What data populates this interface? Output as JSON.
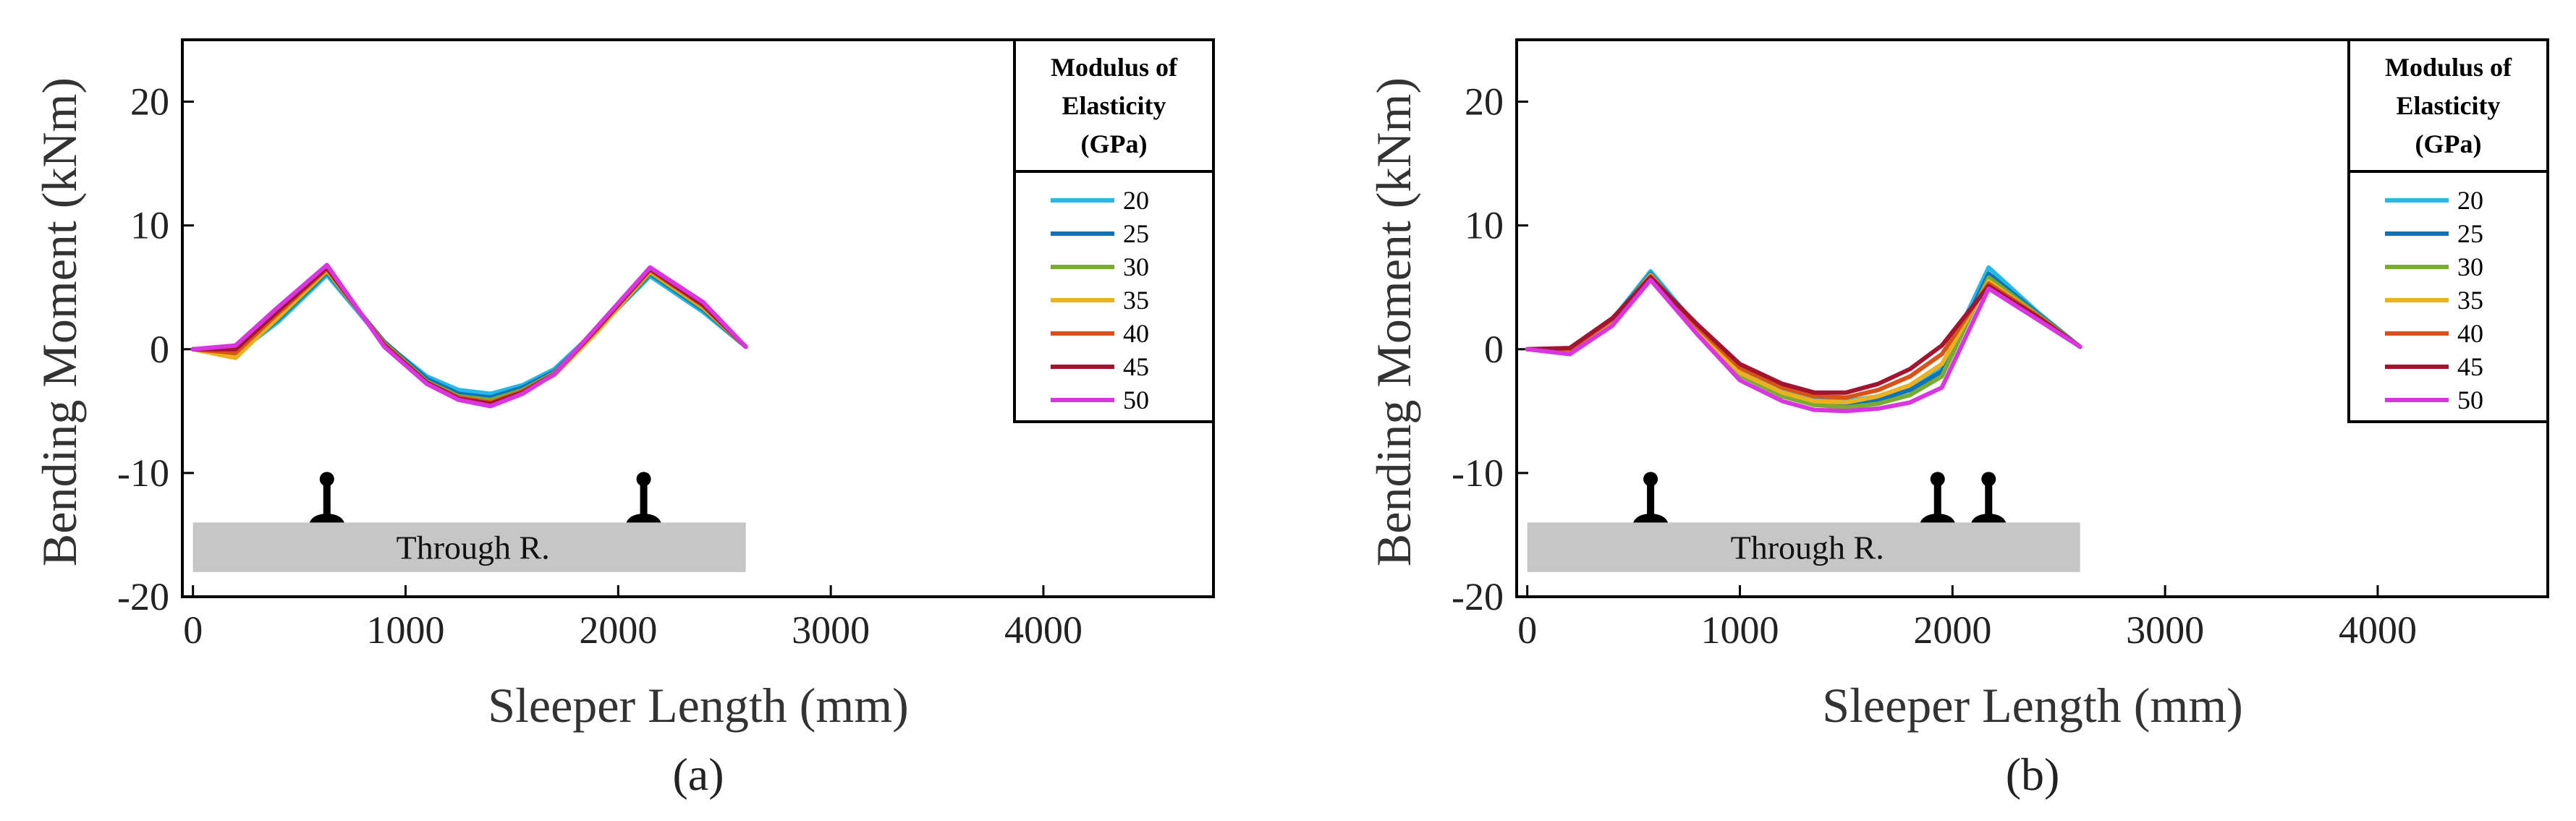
{
  "chart_data": [
    {
      "type": "line",
      "caption": "(a)",
      "xlabel": "Sleeper Length (mm)",
      "ylabel": "Bending Moment (kNm)",
      "xlim": [
        -50,
        4800
      ],
      "ylim": [
        -20,
        25
      ],
      "xticks": [
        "0",
        "1000",
        "2000",
        "3000",
        "4000"
      ],
      "yticks": [
        "20",
        "10",
        "0",
        "-10",
        "-20"
      ],
      "legend_title": [
        "Modulus of",
        "Elasticity",
        "(GPa)"
      ],
      "tie_label": "Through R.",
      "rail_positions": [
        630,
        2120
      ],
      "tie_range": [
        0,
        2600
      ],
      "tie_y": [
        -14,
        -18
      ],
      "x": [
        0,
        200,
        400,
        630,
        900,
        1100,
        1250,
        1400,
        1550,
        1700,
        1900,
        2150,
        2400,
        2600
      ],
      "series": [
        {
          "name": "20",
          "color": "#27b8e8",
          "values": [
            0,
            -0.4,
            2.2,
            6.0,
            0.5,
            -2.2,
            -3.3,
            -3.6,
            -2.9,
            -1.6,
            1.6,
            5.9,
            3.0,
            0.2
          ]
        },
        {
          "name": "25",
          "color": "#0b72bd",
          "values": [
            0,
            -0.5,
            2.4,
            6.2,
            0.6,
            -2.4,
            -3.6,
            -3.9,
            -3.1,
            -1.8,
            1.5,
            6.1,
            3.2,
            0.2
          ]
        },
        {
          "name": "30",
          "color": "#77ac30",
          "values": [
            0,
            -0.6,
            2.5,
            6.3,
            0.5,
            -2.6,
            -3.8,
            -4.1,
            -3.3,
            -1.9,
            1.5,
            6.2,
            3.3,
            0.2
          ]
        },
        {
          "name": "35",
          "color": "#edb120",
          "values": [
            0,
            -0.7,
            2.6,
            6.4,
            0.4,
            -2.8,
            -3.9,
            -4.3,
            -3.4,
            -2.1,
            1.4,
            6.3,
            3.4,
            0.2
          ]
        },
        {
          "name": "40",
          "color": "#d95319",
          "values": [
            0,
            -0.3,
            2.9,
            6.5,
            0.4,
            -2.7,
            -3.9,
            -4.3,
            -3.4,
            -2.0,
            1.6,
            6.4,
            3.5,
            0.2
          ]
        },
        {
          "name": "45",
          "color": "#a2142f",
          "values": [
            0,
            0.0,
            3.1,
            6.6,
            0.3,
            -2.7,
            -4.0,
            -4.4,
            -3.5,
            -2.0,
            1.7,
            6.5,
            3.6,
            0.2
          ]
        },
        {
          "name": "50",
          "color": "#d935e0",
          "values": [
            0,
            0.3,
            3.4,
            6.8,
            0.2,
            -2.8,
            -4.1,
            -4.6,
            -3.6,
            -2.0,
            1.8,
            6.6,
            3.8,
            0.2
          ]
        }
      ]
    },
    {
      "type": "line",
      "caption": "(b)",
      "xlabel": "Sleeper Length (mm)",
      "ylabel": "Bending Moment (kNm)",
      "xlim": [
        -50,
        4800
      ],
      "ylim": [
        -20,
        25
      ],
      "xticks": [
        "0",
        "1000",
        "2000",
        "3000",
        "4000"
      ],
      "yticks": [
        "20",
        "10",
        "0",
        "-10",
        "-20"
      ],
      "legend_title": [
        "Modulus of",
        "Elasticity",
        "(GPa)"
      ],
      "tie_label": "Through R.",
      "rail_positions": [
        580,
        1930,
        2170
      ],
      "tie_range": [
        0,
        2600
      ],
      "tie_y": [
        -14,
        -18
      ],
      "x": [
        0,
        200,
        400,
        580,
        800,
        1000,
        1200,
        1350,
        1500,
        1650,
        1800,
        1950,
        2170,
        2400,
        2600
      ],
      "series": [
        {
          "name": "20",
          "color": "#27b8e8",
          "values": [
            0,
            -0.2,
            2.4,
            6.3,
            1.8,
            -1.6,
            -3.4,
            -4.1,
            -4.2,
            -3.8,
            -3.0,
            -1.4,
            6.6,
            3.0,
            0.2
          ]
        },
        {
          "name": "25",
          "color": "#0b72bd",
          "values": [
            0,
            -0.2,
            2.3,
            6.1,
            1.6,
            -1.9,
            -3.6,
            -4.3,
            -4.5,
            -4.1,
            -3.3,
            -1.8,
            6.1,
            2.9,
            0.2
          ]
        },
        {
          "name": "30",
          "color": "#77ac30",
          "values": [
            0,
            -0.2,
            2.2,
            6.0,
            1.5,
            -2.1,
            -3.8,
            -4.5,
            -4.7,
            -4.4,
            -3.7,
            -2.2,
            5.8,
            2.8,
            0.2
          ]
        },
        {
          "name": "35",
          "color": "#edb120",
          "values": [
            0,
            -0.1,
            2.3,
            6.0,
            1.6,
            -1.9,
            -3.5,
            -4.2,
            -4.3,
            -3.8,
            -2.9,
            -1.2,
            5.5,
            2.7,
            0.2
          ]
        },
        {
          "name": "40",
          "color": "#d95319",
          "values": [
            0,
            0.0,
            2.4,
            5.9,
            1.8,
            -1.5,
            -3.1,
            -3.8,
            -3.9,
            -3.3,
            -2.2,
            -0.4,
            5.3,
            2.7,
            0.2
          ]
        },
        {
          "name": "45",
          "color": "#a2142f",
          "values": [
            0,
            0.1,
            2.5,
            5.8,
            2.0,
            -1.2,
            -2.8,
            -3.5,
            -3.5,
            -2.8,
            -1.6,
            0.3,
            5.1,
            2.6,
            0.2
          ]
        },
        {
          "name": "50",
          "color": "#d935e0",
          "values": [
            0,
            -0.4,
            1.9,
            5.6,
            1.2,
            -2.5,
            -4.2,
            -4.9,
            -5.0,
            -4.8,
            -4.3,
            -3.1,
            4.9,
            2.4,
            0.2
          ]
        }
      ]
    }
  ]
}
